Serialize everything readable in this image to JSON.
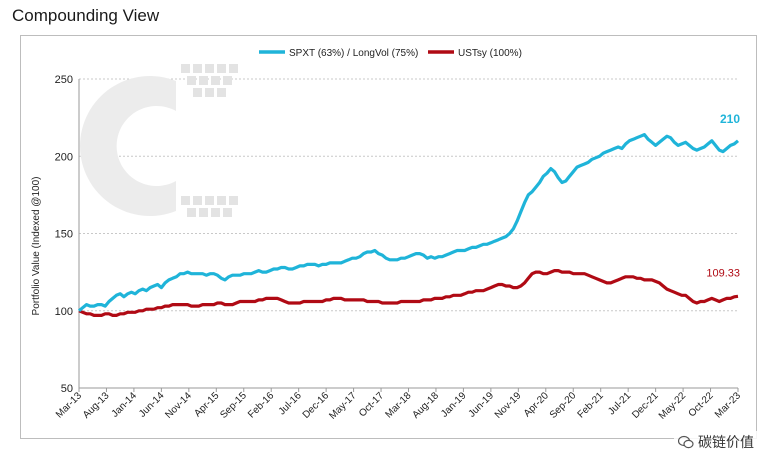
{
  "page": {
    "title": "Compounding View"
  },
  "watermark": {
    "text": "碳链价值"
  },
  "chart_data": {
    "type": "line",
    "ylabel": "Portfolio Value (Indexed @100)",
    "xlabel": "",
    "ylim": [
      50,
      250
    ],
    "yticks": [
      50,
      100,
      150,
      200,
      250
    ],
    "grid": "horizontal",
    "legend": "top-center",
    "x_tick_labels": [
      "Mar-13",
      "Aug-13",
      "Jan-14",
      "Jun-14",
      "Nov-14",
      "Apr-15",
      "Sep-15",
      "Feb-16",
      "Jul-16",
      "Dec-16",
      "May-17",
      "Oct-17",
      "Mar-18",
      "Aug-18",
      "Jan-19",
      "Jun-19",
      "Nov-19",
      "Apr-20",
      "Sep-20",
      "Feb-21",
      "Jul-21",
      "Dec-21",
      "May-22",
      "Oct-22",
      "Mar-23"
    ],
    "series": [
      {
        "name": "SPXT (63%) / LongVol (75%)",
        "color": "#1fb4d9",
        "end_label": "210",
        "values": [
          100,
          102,
          104,
          103,
          103,
          104,
          104,
          103,
          106,
          108,
          110,
          111,
          109,
          111,
          112,
          111,
          113,
          114,
          113,
          115,
          116,
          117,
          115,
          118,
          120,
          121,
          122,
          124,
          124,
          125,
          124,
          124,
          124,
          124,
          123,
          124,
          124,
          123,
          121,
          120,
          122,
          123,
          123,
          123,
          124,
          124,
          124,
          125,
          126,
          125,
          125,
          126,
          127,
          127,
          128,
          128,
          127,
          127,
          128,
          129,
          129,
          130,
          130,
          130,
          129,
          130,
          130,
          131,
          131,
          131,
          131,
          132,
          133,
          134,
          134,
          135,
          137,
          138,
          138,
          139,
          137,
          136,
          134,
          133,
          133,
          133,
          134,
          134,
          135,
          136,
          137,
          137,
          136,
          134,
          135,
          134,
          135,
          135,
          136,
          137,
          138,
          139,
          139,
          139,
          140,
          141,
          141,
          142,
          143,
          143,
          144,
          145,
          146,
          147,
          148,
          150,
          153,
          158,
          164,
          170,
          175,
          177,
          180,
          183,
          187,
          189,
          192,
          190,
          186,
          183,
          184,
          187,
          190,
          193,
          194,
          195,
          196,
          198,
          199,
          200,
          202,
          203,
          204,
          205,
          206,
          205,
          208,
          210,
          211,
          212,
          213,
          214,
          211,
          209,
          207,
          209,
          211,
          213,
          212,
          209,
          207,
          208,
          209,
          207,
          205,
          204,
          205,
          206,
          208,
          210,
          207,
          204,
          203,
          205,
          207,
          208,
          210
        ]
      },
      {
        "name": "USTsy (100%)",
        "color": "#b00a14",
        "end_label": "109.33",
        "values": [
          100,
          99,
          98,
          98,
          97,
          97,
          97,
          98,
          98,
          97,
          97,
          98,
          98,
          99,
          99,
          99,
          100,
          100,
          101,
          101,
          101,
          102,
          102,
          103,
          103,
          104,
          104,
          104,
          104,
          104,
          103,
          103,
          103,
          104,
          104,
          104,
          104,
          105,
          105,
          104,
          104,
          104,
          105,
          106,
          106,
          106,
          106,
          106,
          107,
          107,
          108,
          108,
          108,
          108,
          107,
          106,
          105,
          105,
          105,
          105,
          106,
          106,
          106,
          106,
          106,
          106,
          107,
          107,
          108,
          108,
          108,
          107,
          107,
          107,
          107,
          107,
          107,
          106,
          106,
          106,
          106,
          105,
          105,
          105,
          105,
          105,
          106,
          106,
          106,
          106,
          106,
          106,
          107,
          107,
          107,
          108,
          108,
          108,
          109,
          109,
          110,
          110,
          110,
          111,
          112,
          112,
          113,
          113,
          113,
          114,
          115,
          116,
          117,
          117,
          116,
          116,
          115,
          115,
          116,
          118,
          121,
          124,
          125,
          125,
          124,
          124,
          125,
          126,
          126,
          125,
          125,
          125,
          124,
          124,
          124,
          124,
          123,
          122,
          121,
          120,
          119,
          118,
          118,
          119,
          120,
          121,
          122,
          122,
          122,
          121,
          121,
          120,
          120,
          120,
          119,
          118,
          116,
          114,
          113,
          112,
          111,
          110,
          110,
          108,
          106,
          105,
          106,
          106,
          107,
          108,
          107,
          106,
          107,
          108,
          108,
          109,
          109.33
        ]
      }
    ]
  }
}
